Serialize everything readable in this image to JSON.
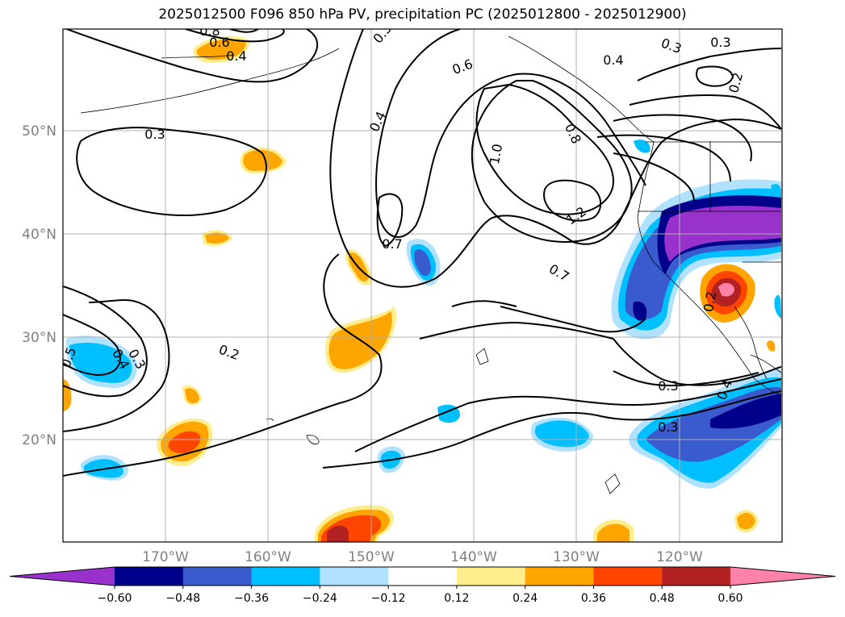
{
  "title": "2025012500 F096 850 hPa PV, precipitation PC (2025012800 - 2025012900)",
  "axes": {
    "lat_labels": [
      "50°N",
      "40°N",
      "30°N",
      "20°N"
    ],
    "lon_labels": [
      "170°W",
      "160°W",
      "150°W",
      "140°W",
      "130°W",
      "120°W"
    ]
  },
  "colorbar": {
    "colors": [
      "#9932cc",
      "#00008b",
      "#3a5bcd",
      "#00bfff",
      "#b0e2ff",
      "#ffffff",
      "#ffec8b",
      "#ffa500",
      "#ff4500",
      "#b22222",
      "#ff83a8"
    ],
    "tick_labels": [
      "−0.60",
      "−0.48",
      "−0.36",
      "−0.24",
      "−0.12",
      "0.12",
      "0.24",
      "0.36",
      "0.48",
      "0.60"
    ]
  },
  "contour_labels": [
    "0.3",
    "0.2",
    "0.4",
    "0.3",
    "0.6",
    "0.8",
    "1.0",
    "1.2",
    "0.7",
    "0.7",
    "0.4",
    "0.3",
    "0.2",
    "0.3",
    "0.4",
    "0.3",
    "0.4",
    "0.5",
    "0.3",
    "0.6",
    "0.4",
    "0.8",
    "0.3",
    "0.2"
  ],
  "colors": {
    "land_outline": "#000000",
    "grid": "#b0b0b0"
  }
}
